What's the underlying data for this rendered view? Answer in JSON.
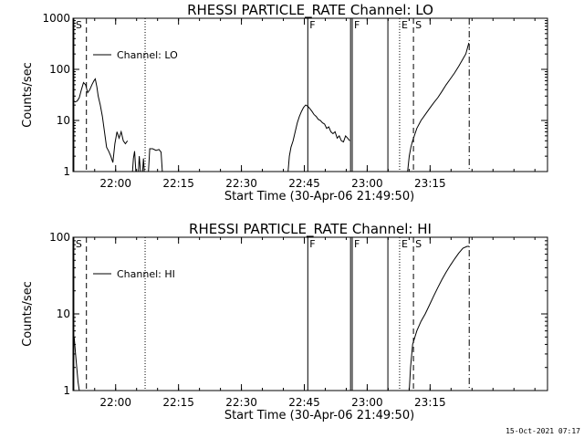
{
  "footer": {
    "timestamp": "15-Oct-2021 07:17"
  },
  "chart_data": [
    {
      "type": "line",
      "title": "RHESSI PARTICLE_RATE Channel: LO",
      "xlabel": "Start Time (30-Apr-06 21:49:50)",
      "ylabel": "Counts/sec",
      "y_scale": "log",
      "ylim": [
        1,
        1000
      ],
      "y_ticks": [
        {
          "value": 1,
          "label": "1"
        },
        {
          "value": 10,
          "label": "10"
        },
        {
          "value": 100,
          "label": "100"
        },
        {
          "value": 1000,
          "label": "1000"
        }
      ],
      "x_units": "minutes after 21:49:50",
      "xlim": [
        0,
        113.17
      ],
      "x_ticks": [
        {
          "value": 10.17,
          "label": "22:00"
        },
        {
          "value": 25.17,
          "label": "22:15"
        },
        {
          "value": 40.17,
          "label": "22:30"
        },
        {
          "value": 55.17,
          "label": "22:45"
        },
        {
          "value": 70.17,
          "label": "23:00"
        },
        {
          "value": 85.17,
          "label": "23:15"
        }
      ],
      "legend": {
        "position": "top-left",
        "label": "Channel: LO"
      },
      "markers": [
        {
          "x": 0.2,
          "label": "S",
          "style": "solid"
        },
        {
          "x": 3.2,
          "label": "",
          "style": "dashed"
        },
        {
          "x": 17.2,
          "label": "",
          "style": "dotted"
        },
        {
          "x": 56.0,
          "label": "F",
          "style": "solid"
        },
        {
          "x": 66.2,
          "label": "",
          "style": "solid"
        },
        {
          "x": 66.6,
          "label": "F",
          "style": "solid"
        },
        {
          "x": 75.1,
          "label": "",
          "style": "solid"
        },
        {
          "x": 77.9,
          "label": "E",
          "style": "dotted"
        },
        {
          "x": 81.2,
          "label": "S",
          "style": "dashed"
        },
        {
          "x": 94.5,
          "label": "",
          "style": "dashdot"
        }
      ],
      "series": [
        {
          "segments": [
            [
              [
                0,
                25
              ],
              [
                0.5,
                23
              ],
              [
                1,
                24
              ],
              [
                1.5,
                28
              ],
              [
                2,
                40
              ],
              [
                2.5,
                55
              ],
              [
                3,
                50
              ],
              [
                3.5,
                35
              ],
              [
                4,
                40
              ],
              [
                4.5,
                50
              ],
              [
                5,
                60
              ],
              [
                5.3,
                65
              ],
              [
                5.7,
                45
              ],
              [
                6,
                30
              ],
              [
                6.5,
                20
              ],
              [
                7,
                12
              ],
              [
                7.5,
                6
              ],
              [
                8,
                3
              ],
              [
                8.5,
                2.5
              ],
              [
                9,
                2
              ],
              [
                9.5,
                1.5
              ],
              [
                10,
                3.5
              ],
              [
                10.5,
                6
              ],
              [
                11,
                4.5
              ],
              [
                11.5,
                6
              ],
              [
                12,
                4
              ],
              [
                12.5,
                3.5
              ],
              [
                13,
                4
              ]
            ],
            [
              [
                14.2,
                1
              ],
              [
                14.4,
                1.8
              ],
              [
                14.7,
                2.5
              ],
              [
                15.0,
                1
              ]
            ],
            [
              [
                15.6,
                1
              ],
              [
                15.8,
                2
              ],
              [
                16.1,
                1
              ]
            ],
            [
              [
                16.6,
                1
              ],
              [
                16.8,
                1.8
              ],
              [
                17.0,
                1
              ]
            ],
            [
              [
                18.0,
                1
              ],
              [
                18.3,
                2.8
              ],
              [
                19.0,
                2.8
              ],
              [
                19.8,
                2.6
              ],
              [
                20.5,
                2.7
              ],
              [
                21.0,
                2.4
              ],
              [
                21.3,
                1
              ]
            ],
            [
              [
                51.3,
                1
              ],
              [
                51.6,
                2
              ],
              [
                52,
                3
              ],
              [
                52.5,
                4
              ],
              [
                53,
                6
              ],
              [
                53.5,
                9
              ],
              [
                54,
                12
              ],
              [
                54.5,
                15
              ],
              [
                55,
                18
              ],
              [
                55.5,
                20
              ],
              [
                56,
                19
              ],
              [
                56.5,
                17
              ],
              [
                57,
                15
              ],
              [
                57.5,
                13
              ],
              [
                58,
                12
              ],
              [
                58.5,
                10.5
              ],
              [
                59,
                10
              ],
              [
                59.5,
                9
              ],
              [
                60,
                8.5
              ],
              [
                60.5,
                7
              ],
              [
                61,
                7.5
              ],
              [
                61.5,
                6
              ],
              [
                62,
                5.5
              ],
              [
                62.5,
                6
              ],
              [
                63,
                4.5
              ],
              [
                63.5,
                5
              ],
              [
                64,
                4
              ],
              [
                64.5,
                3.8
              ],
              [
                65,
                5
              ],
              [
                65.5,
                4.5
              ],
              [
                66,
                4
              ]
            ],
            [
              [
                79.8,
                1
              ],
              [
                80.2,
                2
              ],
              [
                80.6,
                3
              ],
              [
                81,
                4
              ],
              [
                82,
                7
              ],
              [
                83,
                10
              ],
              [
                84,
                13
              ],
              [
                85,
                17
              ],
              [
                86,
                22
              ],
              [
                87,
                28
              ],
              [
                88,
                37
              ],
              [
                89,
                50
              ],
              [
                90,
                65
              ],
              [
                91,
                85
              ],
              [
                92,
                115
              ],
              [
                93,
                160
              ],
              [
                93.7,
                200
              ],
              [
                94.4,
                330
              ]
            ]
          ]
        }
      ]
    },
    {
      "type": "line",
      "title": "RHESSI PARTICLE_RATE Channel: HI",
      "xlabel": "Start Time (30-Apr-06 21:49:50)",
      "ylabel": "Counts/sec",
      "y_scale": "log",
      "ylim": [
        1,
        100
      ],
      "y_ticks": [
        {
          "value": 1,
          "label": "1"
        },
        {
          "value": 10,
          "label": "10"
        },
        {
          "value": 100,
          "label": "100"
        }
      ],
      "x_units": "minutes after 21:49:50",
      "xlim": [
        0,
        113.17
      ],
      "x_ticks": [
        {
          "value": 10.17,
          "label": "22:00"
        },
        {
          "value": 25.17,
          "label": "22:15"
        },
        {
          "value": 40.17,
          "label": "22:30"
        },
        {
          "value": 55.17,
          "label": "22:45"
        },
        {
          "value": 70.17,
          "label": "23:00"
        },
        {
          "value": 85.17,
          "label": "23:15"
        }
      ],
      "legend": {
        "position": "top-left",
        "label": "Channel: HI"
      },
      "markers": [
        {
          "x": 0.2,
          "label": "S",
          "style": "solid"
        },
        {
          "x": 3.2,
          "label": "",
          "style": "dashed"
        },
        {
          "x": 17.2,
          "label": "",
          "style": "dotted"
        },
        {
          "x": 56.0,
          "label": "F",
          "style": "solid"
        },
        {
          "x": 66.2,
          "label": "",
          "style": "solid"
        },
        {
          "x": 66.6,
          "label": "F",
          "style": "solid"
        },
        {
          "x": 75.1,
          "label": "",
          "style": "solid"
        },
        {
          "x": 77.9,
          "label": "E",
          "style": "dotted"
        },
        {
          "x": 81.2,
          "label": "S",
          "style": "dashed"
        },
        {
          "x": 94.5,
          "label": "",
          "style": "dashdot"
        }
      ],
      "series": [
        {
          "segments": [
            [
              [
                0,
                4.5
              ],
              [
                0.3,
                4.8
              ],
              [
                0.6,
                3
              ],
              [
                0.9,
                2
              ],
              [
                1.2,
                1.3
              ],
              [
                1.5,
                1
              ]
            ],
            [
              [
                80.2,
                1
              ],
              [
                80.5,
                2
              ],
              [
                81,
                4
              ],
              [
                82,
                6
              ],
              [
                83,
                8
              ],
              [
                84,
                10
              ],
              [
                85,
                13
              ],
              [
                86,
                17
              ],
              [
                87,
                22
              ],
              [
                88,
                28
              ],
              [
                89,
                35
              ],
              [
                90,
                43
              ],
              [
                91,
                52
              ],
              [
                92,
                62
              ],
              [
                93,
                72
              ],
              [
                94,
                76
              ],
              [
                94.5,
                76
              ]
            ]
          ]
        }
      ]
    }
  ]
}
